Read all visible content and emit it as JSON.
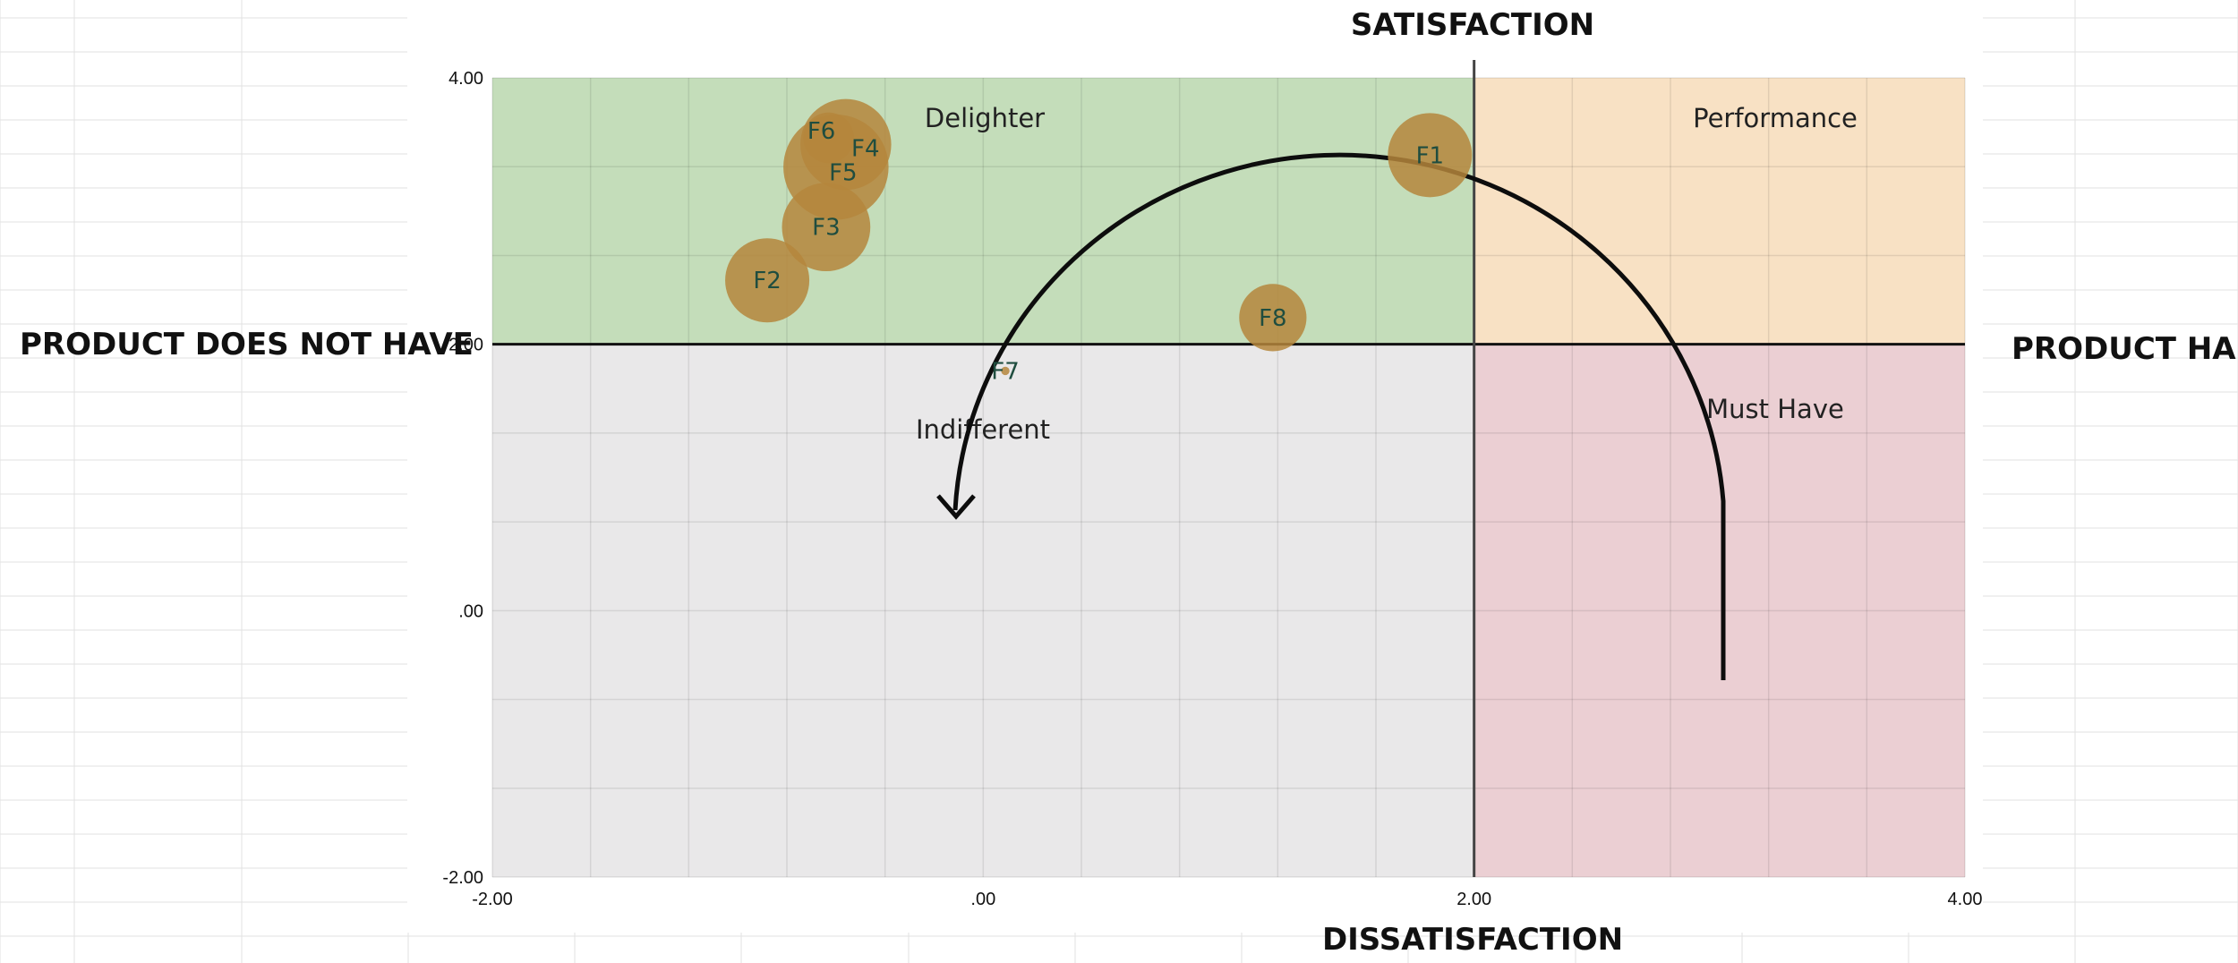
{
  "colors": {
    "delighter": "#c4ddba",
    "performance": "#f8e1c4",
    "indifferent": "#e9e8e9",
    "must_have": "#ebcfd3",
    "bubble": "#b5863c",
    "sheet_grid": "#e2e2e2"
  },
  "chart_data": {
    "type": "scatter",
    "xlim": [
      -2,
      4
    ],
    "ylim": [
      -2,
      4
    ],
    "x_ticks": [
      "-2.00",
      ".00",
      "2.00",
      "4.00"
    ],
    "y_ticks": [
      "4.00",
      "2.00",
      ".00",
      "-2.00"
    ],
    "grid": true,
    "legend": "none",
    "axis_titles": {
      "top": "SATISFACTION",
      "bottom": "DISSATISFACTION",
      "left": "PRODUCT DOES NOT HAVE",
      "right": "PRODUCT HAS"
    },
    "quadrants": [
      {
        "key": "delighter",
        "label": "Delighter"
      },
      {
        "key": "performance",
        "label": "Performance"
      },
      {
        "key": "indifferent",
        "label": "Indifferent"
      },
      {
        "key": "must_have",
        "label": "Must Have"
      }
    ],
    "points": [
      {
        "label": "F1",
        "x": 1.82,
        "y": 3.42,
        "size": 1.0
      },
      {
        "label": "F2",
        "x": -0.88,
        "y": 2.48,
        "size": 1.0
      },
      {
        "label": "F3",
        "x": -0.64,
        "y": 2.88,
        "size": 1.05
      },
      {
        "label": "F4",
        "x": -0.56,
        "y": 3.5,
        "size": 1.08
      },
      {
        "label": "F5",
        "x": -0.6,
        "y": 3.33,
        "size": 1.25
      },
      {
        "label": "F6",
        "x": -0.63,
        "y": 3.55,
        "size": 0.6
      },
      {
        "label": "F7",
        "x": 0.09,
        "y": 1.8,
        "size": 0.1
      },
      {
        "label": "F8",
        "x": 1.18,
        "y": 2.2,
        "size": 0.8
      }
    ]
  }
}
